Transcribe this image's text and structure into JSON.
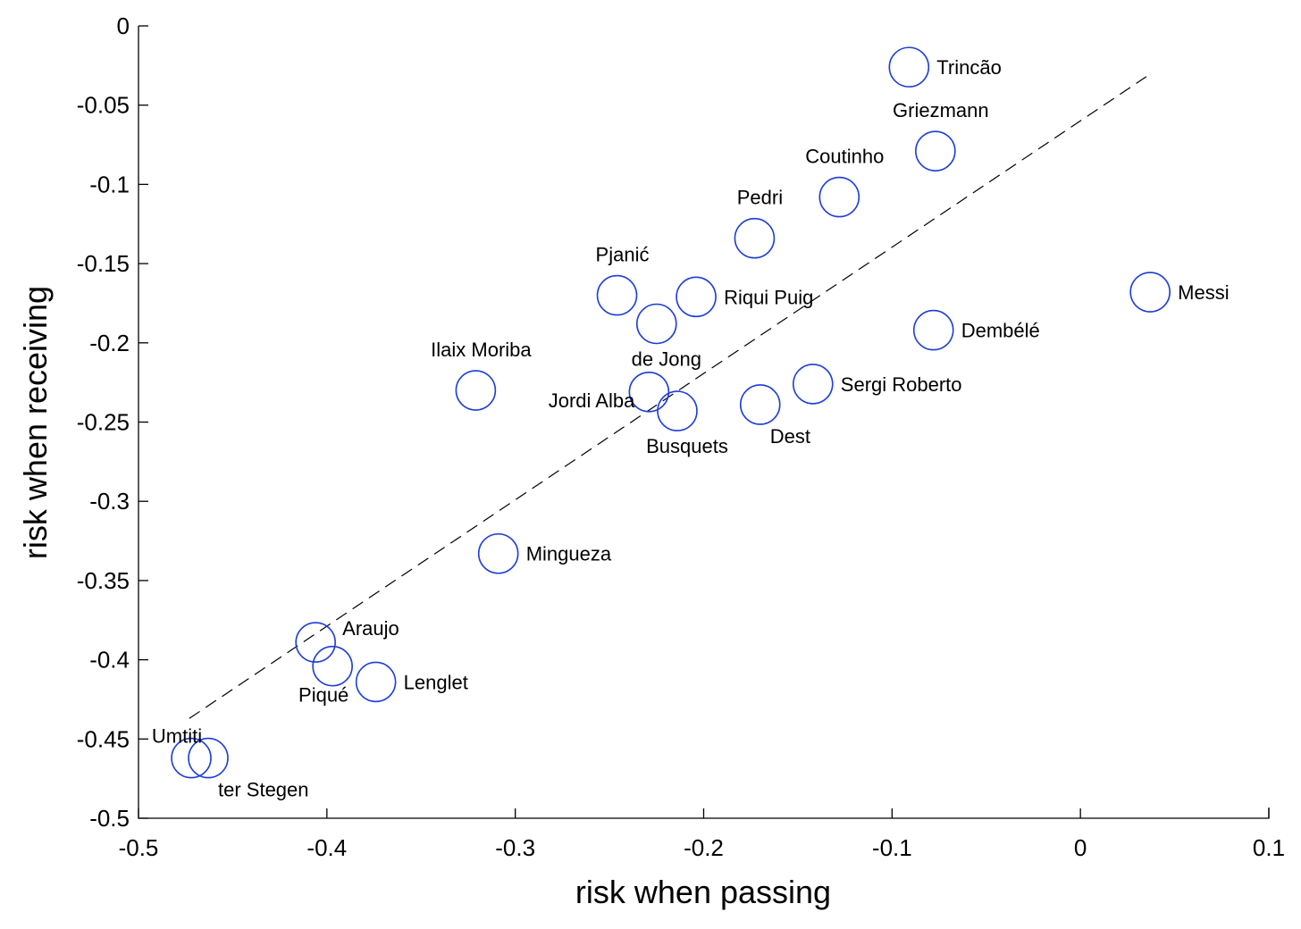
{
  "chart_data": {
    "type": "scatter",
    "xlabel": "risk when passing",
    "ylabel": "risk when receiving",
    "xlim": [
      -0.5,
      0.1
    ],
    "ylim": [
      -0.5,
      0
    ],
    "xticks": [
      "-0.5",
      "-0.4",
      "-0.3",
      "-0.2",
      "-0.1",
      "0",
      "0.1"
    ],
    "yticks": [
      "0",
      "-0.05",
      "-0.1",
      "-0.15",
      "-0.2",
      "-0.25",
      "-0.3",
      "-0.35",
      "-0.4",
      "-0.45",
      "-0.5"
    ],
    "grid": false,
    "marker_color": "#1f3fd6",
    "trend_line": {
      "style": "dashed",
      "x": [
        -0.473,
        0.035
      ],
      "y": [
        -0.437,
        -0.032
      ]
    },
    "points": [
      {
        "name": "Trincão",
        "x": -0.091,
        "y": -0.026,
        "label_pos": "right"
      },
      {
        "name": "Griezmann",
        "x": -0.077,
        "y": -0.079,
        "label_pos": "above"
      },
      {
        "name": "Coutinho",
        "x": -0.128,
        "y": -0.108,
        "label_pos": "above"
      },
      {
        "name": "Pedri",
        "x": -0.173,
        "y": -0.134,
        "label_pos": "above"
      },
      {
        "name": "Pjanić",
        "x": -0.246,
        "y": -0.17,
        "label_pos": "above"
      },
      {
        "name": "Riqui Puig",
        "x": -0.204,
        "y": -0.171,
        "label_pos": "right"
      },
      {
        "name": "de Jong",
        "x": -0.225,
        "y": -0.188,
        "label_pos": "below"
      },
      {
        "name": "Messi",
        "x": 0.037,
        "y": -0.168,
        "label_pos": "right"
      },
      {
        "name": "Dembélé",
        "x": -0.078,
        "y": -0.192,
        "label_pos": "right"
      },
      {
        "name": "Ilaix Moriba",
        "x": -0.321,
        "y": -0.23,
        "label_pos": "above"
      },
      {
        "name": "Jordi Alba",
        "x": -0.229,
        "y": -0.231,
        "label_pos": "left"
      },
      {
        "name": "Busquets",
        "x": -0.214,
        "y": -0.243,
        "label_pos": "below"
      },
      {
        "name": "Dest",
        "x": -0.17,
        "y": -0.239,
        "label_pos": "below-right"
      },
      {
        "name": "Sergi Roberto",
        "x": -0.142,
        "y": -0.226,
        "label_pos": "right"
      },
      {
        "name": "Mingueza",
        "x": -0.309,
        "y": -0.333,
        "label_pos": "right"
      },
      {
        "name": "Araujo",
        "x": -0.406,
        "y": -0.389,
        "label_pos": "above-right"
      },
      {
        "name": "Piqué",
        "x": -0.397,
        "y": -0.404,
        "label_pos": "below-left"
      },
      {
        "name": "Lenglet",
        "x": -0.374,
        "y": -0.414,
        "label_pos": "right"
      },
      {
        "name": "Umtiti",
        "x": -0.472,
        "y": -0.462,
        "label_pos": "above-left"
      },
      {
        "name": "ter Stegen",
        "x": -0.463,
        "y": -0.462,
        "label_pos": "below-right"
      }
    ]
  }
}
